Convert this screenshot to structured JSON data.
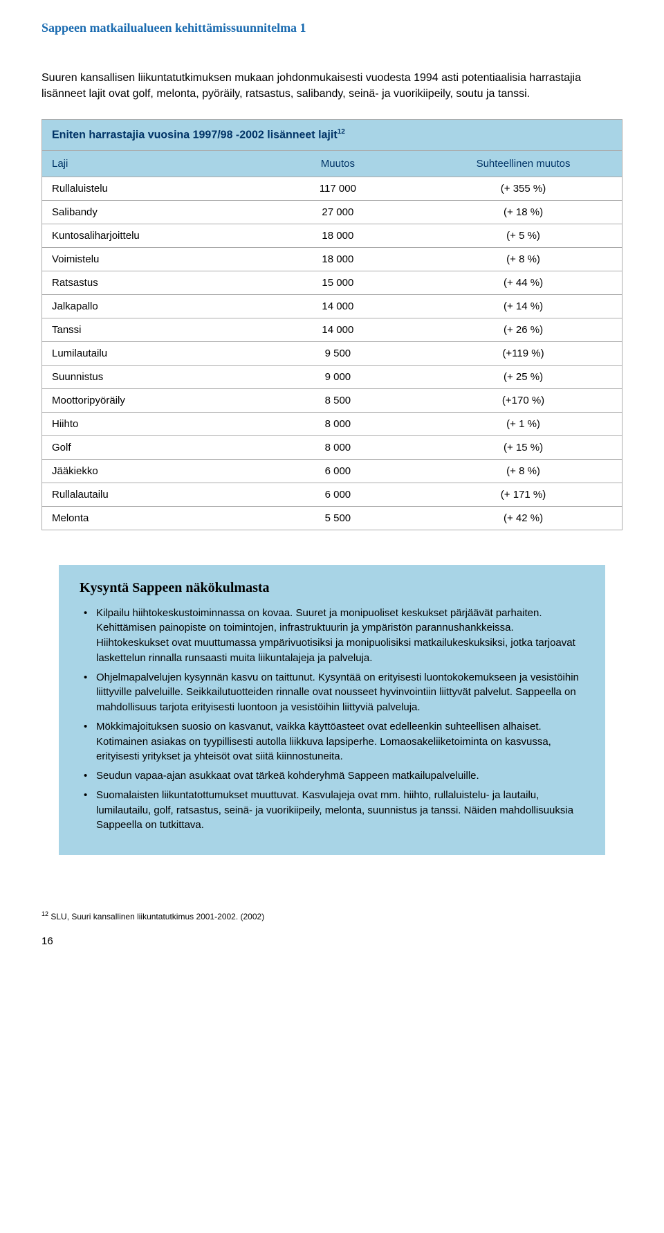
{
  "header": "Sappeen matkailualueen kehittämissuunnitelma 1",
  "intro": "Suuren kansallisen liikuntatutkimuksen mukaan johdonmukaisesti vuodesta 1994 asti potentiaalisia harrastajia lisänneet lajit ovat golf, melonta, pyöräily, ratsastus, salibandy, seinä- ja vuorikiipeily, soutu ja tanssi.",
  "table": {
    "title_main": "Eniten harrastajia vuosina 1997/98 -2002 lisänneet lajit",
    "title_sup": "12",
    "columns": [
      "Laji",
      "Muutos",
      "Suhteellinen muutos"
    ],
    "rows": [
      [
        "Rullaluistelu",
        "117 000",
        "(+ 355 %)"
      ],
      [
        "Salibandy",
        "27 000",
        "(+ 18 %)"
      ],
      [
        "Kuntosaliharjoittelu",
        "18 000",
        "(+ 5 %)"
      ],
      [
        "Voimistelu",
        "18 000",
        "(+ 8 %)"
      ],
      [
        "Ratsastus",
        "15 000",
        "(+ 44 %)"
      ],
      [
        "Jalkapallo",
        "14 000",
        "(+ 14 %)"
      ],
      [
        "Tanssi",
        "14 000",
        "(+ 26 %)"
      ],
      [
        "Lumilautailu",
        "9 500",
        "(+119 %)"
      ],
      [
        "Suunnistus",
        "9 000",
        "(+ 25 %)"
      ],
      [
        "Moottoripyöräily",
        "8 500",
        "(+170 %)"
      ],
      [
        "Hiihto",
        "8 000",
        "(+ 1 %)"
      ],
      [
        "Golf",
        "8 000",
        "(+ 15 %)"
      ],
      [
        "Jääkiekko",
        "6 000",
        "(+ 8 %)"
      ],
      [
        "Rullalautailu",
        "6 000",
        "(+ 171 %)"
      ],
      [
        "Melonta",
        "5 500",
        "(+ 42 %)"
      ]
    ],
    "col_widths": [
      "36%",
      "30%",
      "34%"
    ],
    "header_bg": "#a8d4e6",
    "header_color": "#003366",
    "border_color": "#aaaaaa",
    "fontsize": 15
  },
  "box": {
    "title": "Kysyntä Sappeen näkökulmasta",
    "bg": "#a8d4e6",
    "items": [
      "Kilpailu hiihtokeskustoiminnassa on kovaa. Suuret ja monipuoliset keskukset pärjäävät parhaiten. Kehittämisen painopiste on toimintojen, infrastruktuurin ja ympäristön parannushankkeissa. Hiihtokeskukset ovat muuttumassa ympärivuotisiksi ja monipuolisiksi matkailukeskuksiksi, jotka tarjoavat laskettelun rinnalla runsaasti muita liikuntalajeja ja palveluja.",
      "Ohjelmapalvelujen kysynnän kasvu on taittunut. Kysyntää on erityisesti luontokokemukseen ja vesistöihin liittyville palveluille. Seikkailutuotteiden rinnalle ovat nousseet hyvinvointiin liittyvät palvelut. Sappeella on mahdollisuus tarjota erityisesti luontoon ja vesistöihin liittyviä palveluja.",
      "Mökkimajoituksen suosio on kasvanut, vaikka käyttöasteet ovat edelleenkin suhteellisen alhaiset. Kotimainen asiakas on tyypillisesti autolla liikkuva lapsiperhe. Lomaosakeliiketoiminta on kasvussa, erityisesti yritykset ja yhteisöt ovat siitä kiinnostuneita.",
      "Seudun vapaa-ajan asukkaat ovat tärkeä kohderyhmä Sappeen matkailupalveluille.",
      "Suomalaisten liikuntatottumukset muuttuvat. Kasvulajeja ovat mm. hiihto, rullaluistelu- ja lautailu, lumilautailu, golf, ratsastus, seinä- ja vuorikiipeily, melonta, suunnistus ja tanssi. Näiden mahdollisuuksia Sappeella on tutkittava."
    ]
  },
  "footnote": {
    "sup": "12",
    "text": " SLU, Suuri kansallinen liikuntatutkimus 2001-2002. (2002)"
  },
  "page_number": "16"
}
